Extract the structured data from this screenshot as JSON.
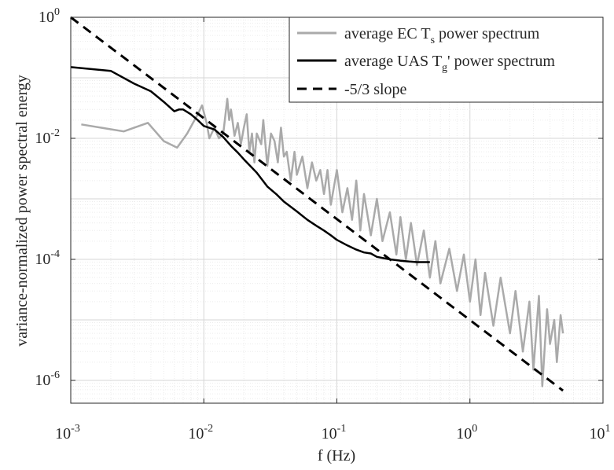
{
  "chart_data": {
    "type": "line",
    "title": "",
    "xlabel": "f (Hz)",
    "ylabel": "variance-normalized power spectral energy",
    "xscale": "log",
    "yscale": "log",
    "xlim": [
      0.001,
      10
    ],
    "ylim": [
      3e-07,
      1
    ],
    "grid": "major and minor",
    "legend_position": "top-right",
    "x_ticks": [
      {
        "value": 0.001,
        "base": "10",
        "exp": "-3"
      },
      {
        "value": 0.01,
        "base": "10",
        "exp": "-2"
      },
      {
        "value": 0.1,
        "base": "10",
        "exp": "-1"
      },
      {
        "value": 1,
        "base": "10",
        "exp": "0"
      },
      {
        "value": 10,
        "base": "10",
        "exp": "1"
      }
    ],
    "y_ticks": [
      {
        "value": 1,
        "base": "10",
        "exp": "0"
      },
      {
        "value": 0.01,
        "base": "10",
        "exp": "-2"
      },
      {
        "value": 0.0001,
        "base": "10",
        "exp": "-4"
      },
      {
        "value": 1e-06,
        "base": "10",
        "exp": "-6"
      }
    ],
    "series": [
      {
        "legend": {
          "pre": "average EC T",
          "sub": "s",
          "post": " power spectrum"
        },
        "color": "#aaaaaa",
        "style": "solid",
        "x": [
          0.0012,
          0.0025,
          0.0038,
          0.005,
          0.0063,
          0.0075,
          0.009,
          0.0097,
          0.0105,
          0.011,
          0.012,
          0.013,
          0.014,
          0.015,
          0.0155,
          0.016,
          0.017,
          0.018,
          0.019,
          0.02,
          0.021,
          0.022,
          0.023,
          0.024,
          0.025,
          0.027,
          0.028,
          0.03,
          0.032,
          0.034,
          0.036,
          0.038,
          0.04,
          0.042,
          0.045,
          0.048,
          0.05,
          0.055,
          0.06,
          0.065,
          0.07,
          0.075,
          0.08,
          0.085,
          0.09,
          0.1,
          0.11,
          0.12,
          0.13,
          0.14,
          0.15,
          0.16,
          0.18,
          0.2,
          0.22,
          0.25,
          0.28,
          0.3,
          0.33,
          0.36,
          0.4,
          0.45,
          0.5,
          0.55,
          0.6,
          0.7,
          0.8,
          0.9,
          1.0,
          1.1,
          1.2,
          1.3,
          1.5,
          1.7,
          2.0,
          2.2,
          2.5,
          2.8,
          3.0,
          3.3,
          3.5,
          3.8,
          4.0,
          4.3,
          4.5,
          4.8,
          5.0
        ],
        "y": [
          0.017,
          0.013,
          0.018,
          0.009,
          0.007,
          0.012,
          0.025,
          0.035,
          0.018,
          0.01,
          0.015,
          0.01,
          0.012,
          0.045,
          0.02,
          0.03,
          0.011,
          0.018,
          0.008,
          0.015,
          0.025,
          0.006,
          0.012,
          0.004,
          0.012,
          0.008,
          0.02,
          0.0035,
          0.012,
          0.009,
          0.004,
          0.015,
          0.005,
          0.006,
          0.002,
          0.006,
          0.0025,
          0.005,
          0.0015,
          0.004,
          0.002,
          0.003,
          0.0012,
          0.003,
          0.0008,
          0.003,
          0.0006,
          0.0015,
          0.00045,
          0.002,
          0.0003,
          0.0012,
          0.00025,
          0.001,
          0.0002,
          0.0006,
          0.00012,
          0.0005,
          0.0001,
          0.0004,
          8e-05,
          0.0003,
          5e-05,
          0.0002,
          4e-05,
          0.00015,
          3e-05,
          0.00012,
          2e-05,
          0.0001,
          1.2e-05,
          6e-05,
          8e-06,
          5e-05,
          6e-06,
          3e-05,
          3e-06,
          2e-05,
          1.5e-06,
          2.5e-05,
          8e-07,
          1.5e-05,
          4e-06,
          1e-05,
          2e-06,
          1.2e-05,
          6e-06
        ]
      },
      {
        "legend": {
          "pre": "average UAS T",
          "sub": "g",
          "post": "' power spectrum"
        },
        "color": "#000000",
        "style": "solid",
        "x": [
          0.001,
          0.002,
          0.003,
          0.004,
          0.005,
          0.006,
          0.0065,
          0.007,
          0.008,
          0.009,
          0.01,
          0.012,
          0.014,
          0.016,
          0.018,
          0.02,
          0.025,
          0.03,
          0.035,
          0.04,
          0.05,
          0.06,
          0.07,
          0.08,
          0.09,
          0.1,
          0.12,
          0.14,
          0.16,
          0.18,
          0.2,
          0.25,
          0.3,
          0.35,
          0.4,
          0.45,
          0.5
        ],
        "y": [
          0.15,
          0.13,
          0.08,
          0.06,
          0.04,
          0.028,
          0.03,
          0.03,
          0.025,
          0.02,
          0.016,
          0.014,
          0.0105,
          0.0075,
          0.0058,
          0.0045,
          0.0027,
          0.0016,
          0.0012,
          0.0009,
          0.00062,
          0.00045,
          0.00036,
          0.0003,
          0.00025,
          0.00021,
          0.00017,
          0.000145,
          0.00013,
          0.000125,
          0.00011,
          0.0001,
          9.5e-05,
          9.2e-05,
          9e-05,
          9e-05,
          9e-05
        ]
      },
      {
        "legend": {
          "pre": "-5/3 slope",
          "sub": "",
          "post": ""
        },
        "color": "#000000",
        "style": "dashed",
        "x": [
          0.001,
          5
        ],
        "y": [
          1.0,
          6.77e-07
        ]
      }
    ]
  }
}
